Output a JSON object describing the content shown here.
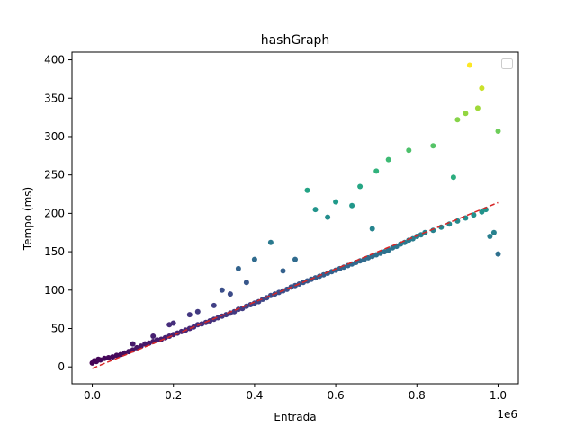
{
  "chart_data": {
    "type": "scatter",
    "title": "hashGraph",
    "xlabel": "Entrada",
    "ylabel": "Tempo (ms)",
    "x_offset_label": "1e6",
    "xlim": [
      -50000,
      1050000
    ],
    "ylim": [
      -22,
      410
    ],
    "x_ticks": [
      0,
      200000,
      400000,
      600000,
      800000,
      1000000
    ],
    "x_tick_labels": [
      "0.0",
      "0.2",
      "0.4",
      "0.6",
      "0.8",
      "1.0"
    ],
    "y_ticks": [
      0,
      50,
      100,
      150,
      200,
      250,
      300,
      350,
      400
    ],
    "y_tick_labels": [
      "0",
      "50",
      "100",
      "150",
      "200",
      "250",
      "300",
      "350",
      "400"
    ],
    "grid": false,
    "legend": {
      "placement": "top-right",
      "entries": []
    },
    "colormap": "viridis",
    "point_color": "color mapped to Tempo (ms)",
    "trend_line": {
      "style": "dashed",
      "color": "#d62728",
      "x": [
        0,
        1000000
      ],
      "y": [
        -2,
        214
      ]
    },
    "points": [
      {
        "x": 0,
        "y": 5
      },
      {
        "x": 5000,
        "y": 8
      },
      {
        "x": 10000,
        "y": 7
      },
      {
        "x": 15000,
        "y": 10
      },
      {
        "x": 20000,
        "y": 9
      },
      {
        "x": 30000,
        "y": 11
      },
      {
        "x": 40000,
        "y": 12
      },
      {
        "x": 50000,
        "y": 13
      },
      {
        "x": 60000,
        "y": 15
      },
      {
        "x": 70000,
        "y": 16
      },
      {
        "x": 80000,
        "y": 18
      },
      {
        "x": 90000,
        "y": 20
      },
      {
        "x": 100000,
        "y": 22
      },
      {
        "x": 100000,
        "y": 30
      },
      {
        "x": 110000,
        "y": 25
      },
      {
        "x": 120000,
        "y": 27
      },
      {
        "x": 130000,
        "y": 30
      },
      {
        "x": 140000,
        "y": 31
      },
      {
        "x": 150000,
        "y": 33
      },
      {
        "x": 150000,
        "y": 40
      },
      {
        "x": 160000,
        "y": 35
      },
      {
        "x": 170000,
        "y": 36
      },
      {
        "x": 180000,
        "y": 38
      },
      {
        "x": 190000,
        "y": 40
      },
      {
        "x": 190000,
        "y": 55
      },
      {
        "x": 200000,
        "y": 42
      },
      {
        "x": 200000,
        "y": 57
      },
      {
        "x": 210000,
        "y": 44
      },
      {
        "x": 220000,
        "y": 46
      },
      {
        "x": 230000,
        "y": 48
      },
      {
        "x": 240000,
        "y": 50
      },
      {
        "x": 240000,
        "y": 68
      },
      {
        "x": 250000,
        "y": 52
      },
      {
        "x": 260000,
        "y": 55
      },
      {
        "x": 260000,
        "y": 72
      },
      {
        "x": 270000,
        "y": 56
      },
      {
        "x": 280000,
        "y": 58
      },
      {
        "x": 290000,
        "y": 60
      },
      {
        "x": 300000,
        "y": 62
      },
      {
        "x": 300000,
        "y": 80
      },
      {
        "x": 310000,
        "y": 64
      },
      {
        "x": 320000,
        "y": 66
      },
      {
        "x": 320000,
        "y": 100
      },
      {
        "x": 330000,
        "y": 68
      },
      {
        "x": 340000,
        "y": 70
      },
      {
        "x": 340000,
        "y": 95
      },
      {
        "x": 350000,
        "y": 72
      },
      {
        "x": 360000,
        "y": 75
      },
      {
        "x": 360000,
        "y": 128
      },
      {
        "x": 370000,
        "y": 76
      },
      {
        "x": 380000,
        "y": 79
      },
      {
        "x": 380000,
        "y": 110
      },
      {
        "x": 390000,
        "y": 81
      },
      {
        "x": 400000,
        "y": 83
      },
      {
        "x": 400000,
        "y": 140
      },
      {
        "x": 410000,
        "y": 85
      },
      {
        "x": 420000,
        "y": 88
      },
      {
        "x": 430000,
        "y": 90
      },
      {
        "x": 440000,
        "y": 93
      },
      {
        "x": 440000,
        "y": 162
      },
      {
        "x": 450000,
        "y": 95
      },
      {
        "x": 460000,
        "y": 97
      },
      {
        "x": 470000,
        "y": 99
      },
      {
        "x": 470000,
        "y": 125
      },
      {
        "x": 480000,
        "y": 101
      },
      {
        "x": 490000,
        "y": 104
      },
      {
        "x": 500000,
        "y": 106
      },
      {
        "x": 500000,
        "y": 140
      },
      {
        "x": 510000,
        "y": 108
      },
      {
        "x": 520000,
        "y": 110
      },
      {
        "x": 530000,
        "y": 112
      },
      {
        "x": 530000,
        "y": 230
      },
      {
        "x": 540000,
        "y": 114
      },
      {
        "x": 550000,
        "y": 116
      },
      {
        "x": 550000,
        "y": 205
      },
      {
        "x": 560000,
        "y": 118
      },
      {
        "x": 570000,
        "y": 120
      },
      {
        "x": 580000,
        "y": 122
      },
      {
        "x": 580000,
        "y": 195
      },
      {
        "x": 590000,
        "y": 124
      },
      {
        "x": 600000,
        "y": 126
      },
      {
        "x": 600000,
        "y": 215
      },
      {
        "x": 610000,
        "y": 128
      },
      {
        "x": 620000,
        "y": 130
      },
      {
        "x": 630000,
        "y": 132
      },
      {
        "x": 640000,
        "y": 134
      },
      {
        "x": 640000,
        "y": 210
      },
      {
        "x": 650000,
        "y": 136
      },
      {
        "x": 660000,
        "y": 138
      },
      {
        "x": 660000,
        "y": 235
      },
      {
        "x": 670000,
        "y": 140
      },
      {
        "x": 680000,
        "y": 142
      },
      {
        "x": 690000,
        "y": 144
      },
      {
        "x": 690000,
        "y": 180
      },
      {
        "x": 700000,
        "y": 146
      },
      {
        "x": 700000,
        "y": 255
      },
      {
        "x": 710000,
        "y": 148
      },
      {
        "x": 720000,
        "y": 150
      },
      {
        "x": 730000,
        "y": 152
      },
      {
        "x": 730000,
        "y": 270
      },
      {
        "x": 740000,
        "y": 155
      },
      {
        "x": 750000,
        "y": 157
      },
      {
        "x": 760000,
        "y": 160
      },
      {
        "x": 770000,
        "y": 162
      },
      {
        "x": 780000,
        "y": 165
      },
      {
        "x": 780000,
        "y": 282
      },
      {
        "x": 790000,
        "y": 167
      },
      {
        "x": 800000,
        "y": 170
      },
      {
        "x": 810000,
        "y": 172
      },
      {
        "x": 820000,
        "y": 175
      },
      {
        "x": 840000,
        "y": 178
      },
      {
        "x": 840000,
        "y": 288
      },
      {
        "x": 860000,
        "y": 182
      },
      {
        "x": 880000,
        "y": 186
      },
      {
        "x": 890000,
        "y": 247
      },
      {
        "x": 900000,
        "y": 190
      },
      {
        "x": 900000,
        "y": 322
      },
      {
        "x": 920000,
        "y": 194
      },
      {
        "x": 920000,
        "y": 330
      },
      {
        "x": 930000,
        "y": 393
      },
      {
        "x": 940000,
        "y": 198
      },
      {
        "x": 950000,
        "y": 337
      },
      {
        "x": 960000,
        "y": 202
      },
      {
        "x": 960000,
        "y": 363
      },
      {
        "x": 970000,
        "y": 205
      },
      {
        "x": 980000,
        "y": 170
      },
      {
        "x": 990000,
        "y": 175
      },
      {
        "x": 1000000,
        "y": 147
      },
      {
        "x": 1000000,
        "y": 307
      }
    ]
  }
}
